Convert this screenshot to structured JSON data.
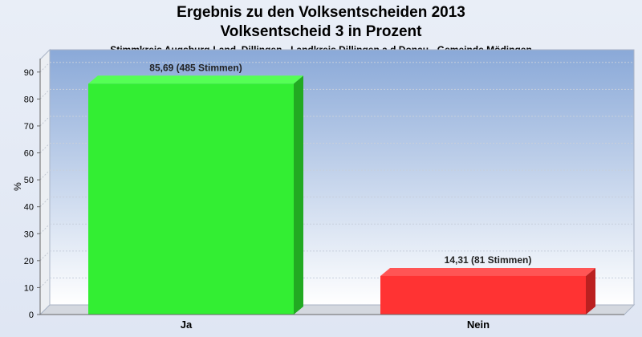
{
  "chart_data": {
    "type": "bar",
    "title": "Ergebnis zu den Volksentscheiden 2013",
    "subtitle": "Volksentscheid 3 in Prozent",
    "caption": "Stimmkreis Augsburg-Land, Dillingen - Landkreis Dillingen a.d.Donau - Gemeinde Mödingen",
    "ylabel": "%",
    "xlabel": "",
    "ylim": [
      0,
      95
    ],
    "yticks": [
      0,
      10,
      20,
      30,
      40,
      50,
      60,
      70,
      80,
      90
    ],
    "categories": [
      "Ja",
      "Nein"
    ],
    "values": [
      85.69,
      14.31
    ],
    "data_labels": [
      "85,69 (485 Stimmen)",
      "14,31 (81 Stimmen)"
    ],
    "colors": [
      "#33ee33",
      "#ff3333"
    ],
    "grid": true,
    "legend": "none"
  }
}
